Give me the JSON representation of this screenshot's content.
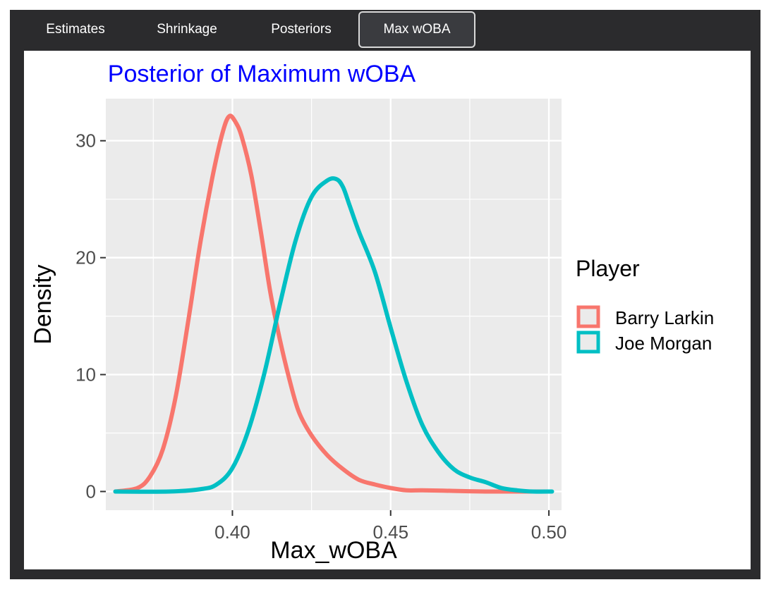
{
  "tabs": [
    {
      "label": "Estimates",
      "active": false
    },
    {
      "label": "Shrinkage",
      "active": false
    },
    {
      "label": "Posteriors",
      "active": false
    },
    {
      "label": "Max wOBA",
      "active": true
    }
  ],
  "colors": {
    "title": "#0000ff",
    "panel_bg": "#ebebeb",
    "grid": "#ffffff",
    "tick_label": "#4d4d4d",
    "barry": "#f8766d",
    "joe": "#00bfc4"
  },
  "chart_data": {
    "type": "line",
    "title": "Posterior of Maximum wOBA",
    "xlabel": "Max_wOBA",
    "ylabel": "Density",
    "xlim": [
      0.36,
      0.504
    ],
    "ylim": [
      -1.6,
      33.6
    ],
    "xticks": [
      0.4,
      0.45,
      0.5
    ],
    "xtick_labels": [
      "0.40",
      "0.45",
      "0.50"
    ],
    "yticks": [
      0,
      10,
      20,
      30
    ],
    "ytick_labels": [
      "0",
      "10",
      "20",
      "30"
    ],
    "grid": true,
    "legend": {
      "title": "Player",
      "position": "right"
    },
    "series": [
      {
        "name": "Barry Larkin",
        "color": "#f8766d",
        "x": [
          0.363,
          0.37,
          0.374,
          0.378,
          0.382,
          0.386,
          0.39,
          0.394,
          0.397,
          0.399,
          0.401,
          0.403,
          0.406,
          0.409,
          0.412,
          0.415,
          0.418,
          0.421,
          0.425,
          0.43,
          0.435,
          0.44,
          0.445,
          0.45,
          0.455,
          0.46,
          0.47,
          0.48,
          0.49,
          0.5
        ],
        "y": [
          0.0,
          0.3,
          1.3,
          3.6,
          8.0,
          14.5,
          21.5,
          27.3,
          30.8,
          32.1,
          31.6,
          30.3,
          27.0,
          22.2,
          17.0,
          13.0,
          9.6,
          6.8,
          4.8,
          3.1,
          1.9,
          1.0,
          0.6,
          0.3,
          0.1,
          0.1,
          0.05,
          0.0,
          0.0,
          0.0
        ]
      },
      {
        "name": "Joe Morgan",
        "color": "#00bfc4",
        "x": [
          0.363,
          0.38,
          0.39,
          0.395,
          0.4,
          0.405,
          0.41,
          0.415,
          0.42,
          0.425,
          0.43,
          0.433,
          0.435,
          0.437,
          0.44,
          0.445,
          0.45,
          0.455,
          0.46,
          0.465,
          0.47,
          0.475,
          0.48,
          0.485,
          0.49,
          0.495,
          0.501
        ],
        "y": [
          0.0,
          0.0,
          0.2,
          0.6,
          2.0,
          5.2,
          10.0,
          16.0,
          21.5,
          25.2,
          26.6,
          26.7,
          26.0,
          24.5,
          22.2,
          18.8,
          14.0,
          9.4,
          5.7,
          3.4,
          1.9,
          1.2,
          0.8,
          0.3,
          0.1,
          0.0,
          0.0
        ]
      }
    ]
  }
}
